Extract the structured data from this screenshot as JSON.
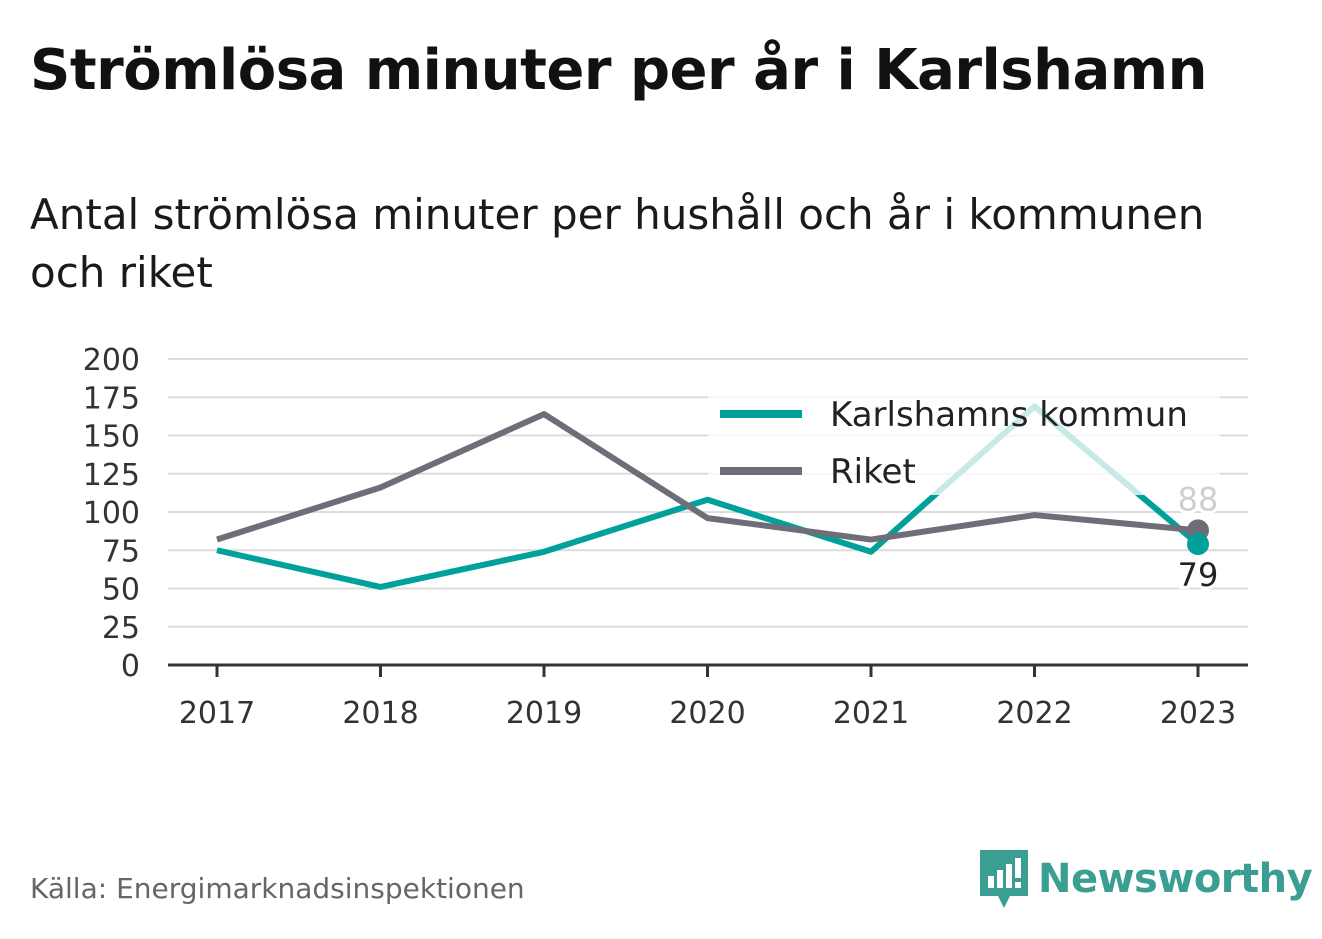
{
  "title": "Strömlösa minuter per år i Karlshamn",
  "subtitle": "Antal strömlösa minuter per hushåll och år i kommunen och riket",
  "source": "Källa: Energimarknadsinspektionen",
  "brand": {
    "name": "Newsworthy",
    "icon": "newsworthy-logo-icon",
    "color": "#3a9e92"
  },
  "chart_data": {
    "type": "line",
    "x": [
      "2017",
      "2018",
      "2019",
      "2020",
      "2021",
      "2022",
      "2023"
    ],
    "ylim": [
      0,
      200
    ],
    "yticks": [
      "0",
      "25",
      "50",
      "75",
      "100",
      "125",
      "150",
      "175",
      "200"
    ],
    "grid": true,
    "legend_position": "top-right",
    "series": [
      {
        "name": "Karlshamns kommun",
        "color": "#00a19a",
        "values": [
          75,
          51,
          74,
          108,
          74,
          169,
          79
        ],
        "end_label": "79"
      },
      {
        "name": "Riket",
        "color": "#6e6e78",
        "values": [
          82,
          116,
          164,
          96,
          82,
          98,
          88
        ],
        "end_label": "88"
      }
    ]
  }
}
